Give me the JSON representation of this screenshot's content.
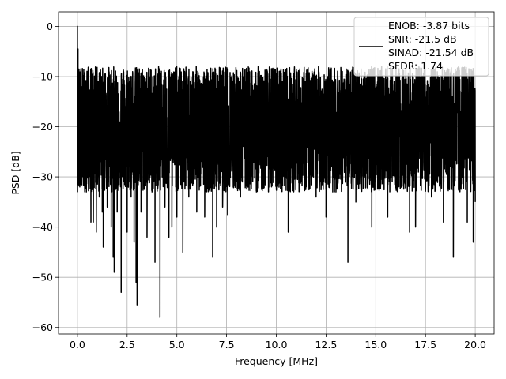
{
  "chart_data": {
    "type": "line",
    "title": "",
    "xlabel": "Frequency [MHz]",
    "ylabel": "PSD [dB]",
    "xlim": [
      -0.95,
      20.95
    ],
    "ylim": [
      -61.3,
      2.9
    ],
    "xticks": [
      0.0,
      2.5,
      5.0,
      7.5,
      10.0,
      12.5,
      15.0,
      17.5,
      20.0
    ],
    "xtick_labels": [
      "0.0",
      "2.5",
      "5.0",
      "7.5",
      "10.0",
      "12.5",
      "15.0",
      "17.5",
      "20.0"
    ],
    "yticks": [
      0,
      -10,
      -20,
      -30,
      -40,
      -50,
      -60
    ],
    "ytick_labels": [
      "0",
      "−10",
      "−20",
      "−30",
      "−40",
      "−50",
      "−60"
    ],
    "grid": true,
    "legend_position": "top-right",
    "line_color": "#000000",
    "series": [
      {
        "name": "ENOB: -3.87 bits",
        "legend_lines": [
          "ENOB: -3.87 bits",
          "SNR: -21.5 dB",
          "SINAD: -21.54 dB",
          "SFDR: 1.74"
        ],
        "noise_floor_db": -20,
        "noise_upper_db": -8,
        "noise_lower_db": -33,
        "x_start": 0.0,
        "x_end": 20.0,
        "points": [
          [
            0.0,
            0.0
          ],
          [
            0.01,
            -12.5
          ],
          [
            0.03,
            -4.5
          ],
          [
            0.05,
            -13.0
          ],
          [
            0.08,
            -8.5
          ],
          [
            0.12,
            -32.0
          ],
          [
            0.2,
            -12.0
          ],
          [
            0.35,
            -31.0
          ],
          [
            0.45,
            -33.0
          ],
          [
            0.55,
            -28.0
          ],
          [
            0.68,
            -39.0
          ],
          [
            0.8,
            -39.0
          ],
          [
            0.95,
            -41.0
          ],
          [
            1.1,
            -34.0
          ],
          [
            1.25,
            -37.0
          ],
          [
            1.3,
            -44.0
          ],
          [
            1.5,
            -36.0
          ],
          [
            1.7,
            -40.0
          ],
          [
            1.8,
            -46.0
          ],
          [
            1.85,
            -49.0
          ],
          [
            2.0,
            -37.0
          ],
          [
            2.2,
            -53.0
          ],
          [
            2.5,
            -41.0
          ],
          [
            2.7,
            -34.0
          ],
          [
            2.85,
            -43.0
          ],
          [
            2.95,
            -51.0
          ],
          [
            3.0,
            -55.5
          ],
          [
            3.2,
            -37.0
          ],
          [
            3.5,
            -42.0
          ],
          [
            3.75,
            -33.0
          ],
          [
            3.9,
            -47.0
          ],
          [
            4.15,
            -58.0
          ],
          [
            4.4,
            -36.0
          ],
          [
            4.6,
            -42.0
          ],
          [
            4.75,
            -40.0
          ],
          [
            5.0,
            -38.0
          ],
          [
            5.3,
            -45.0
          ],
          [
            5.6,
            -34.0
          ],
          [
            6.0,
            -37.0
          ],
          [
            6.4,
            -38.0
          ],
          [
            6.8,
            -46.0
          ],
          [
            7.0,
            -40.0
          ],
          [
            7.3,
            -36.0
          ],
          [
            7.55,
            -37.5
          ],
          [
            8.2,
            -34.0
          ],
          [
            9.0,
            -33.0
          ],
          [
            10.0,
            -32.0
          ],
          [
            10.6,
            -41.0
          ],
          [
            11.5,
            -32.0
          ],
          [
            12.0,
            -34.0
          ],
          [
            12.5,
            -38.0
          ],
          [
            13.0,
            -33.0
          ],
          [
            13.6,
            -47.0
          ],
          [
            14.0,
            -35.0
          ],
          [
            14.8,
            -40.0
          ],
          [
            15.6,
            -38.0
          ],
          [
            16.0,
            -32.0
          ],
          [
            16.7,
            -41.0
          ],
          [
            17.0,
            -40.0
          ],
          [
            17.8,
            -34.0
          ],
          [
            18.4,
            -39.0
          ],
          [
            18.9,
            -46.0
          ],
          [
            19.6,
            -39.0
          ],
          [
            19.9,
            -43.0
          ],
          [
            20.0,
            -35.0
          ]
        ]
      }
    ]
  }
}
